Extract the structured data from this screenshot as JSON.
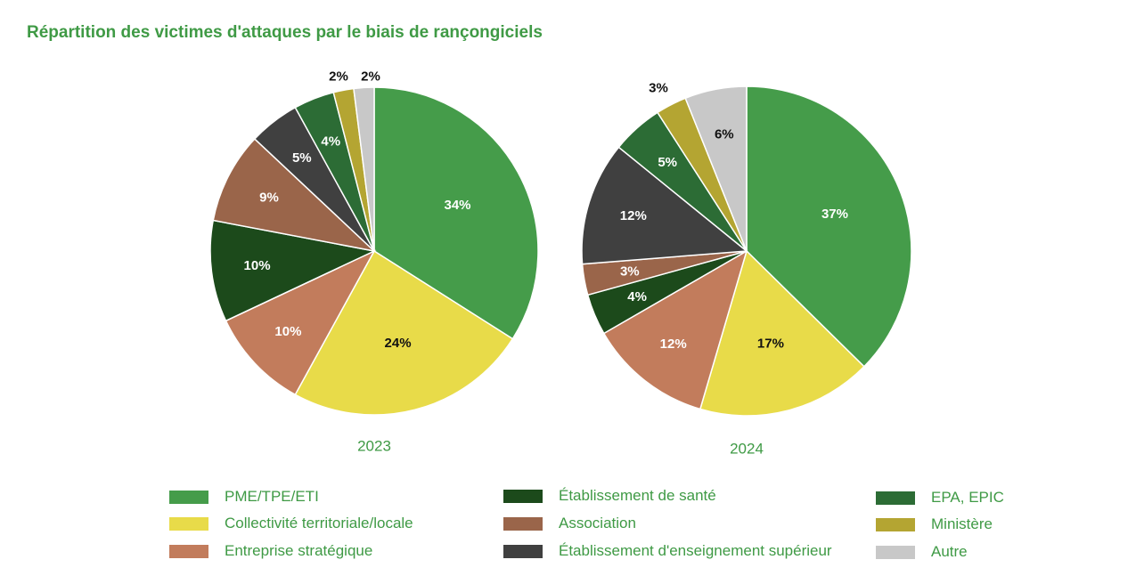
{
  "title": "Répartition des victimes d'attaques par le biais de rançongiciels",
  "categories": [
    {
      "name": "PME/TPE/ETI",
      "color": "#459c4a"
    },
    {
      "name": "Collectivité territoriale/locale",
      "color": "#e8db49"
    },
    {
      "name": "Entreprise stratégique",
      "color": "#c27c5c"
    },
    {
      "name": "Établissement de santé",
      "color": "#1c4a1b"
    },
    {
      "name": "Association",
      "color": "#9a654a"
    },
    {
      "name": "Établissement d'enseignement supérieur",
      "color": "#404040"
    },
    {
      "name": "EPA, EPIC",
      "color": "#2c6c35"
    },
    {
      "name": "Ministère",
      "color": "#b4a532"
    },
    {
      "name": "Autre",
      "color": "#c8c8c8"
    }
  ],
  "chart_data": [
    {
      "type": "pie",
      "title": "2023",
      "labels": [
        "PME/TPE/ETI",
        "Collectivité territoriale/locale",
        "Entreprise stratégique",
        "Établissement de santé",
        "Association",
        "Établissement d'enseignement supérieur",
        "EPA, EPIC",
        "Ministère",
        "Autre"
      ],
      "values": [
        34,
        24,
        10,
        10,
        9,
        5,
        4,
        2,
        2
      ],
      "data_labels": [
        "34%",
        "24%",
        "10%",
        "10%",
        "9%",
        "5%",
        "4%",
        "2%",
        "2%"
      ]
    },
    {
      "type": "pie",
      "title": "2024",
      "labels": [
        "PME/TPE/ETI",
        "Collectivité territoriale/locale",
        "Entreprise stratégique",
        "Établissement de santé",
        "Association",
        "Établissement d'enseignement supérieur",
        "EPA, EPIC",
        "Ministère",
        "Autre"
      ],
      "values": [
        37,
        17,
        12,
        4,
        3,
        12,
        5,
        3,
        6
      ],
      "data_labels": [
        "37%",
        "17%",
        "12%",
        "4%",
        "3%",
        "12%",
        "5%",
        "3%",
        "6%"
      ]
    }
  ]
}
